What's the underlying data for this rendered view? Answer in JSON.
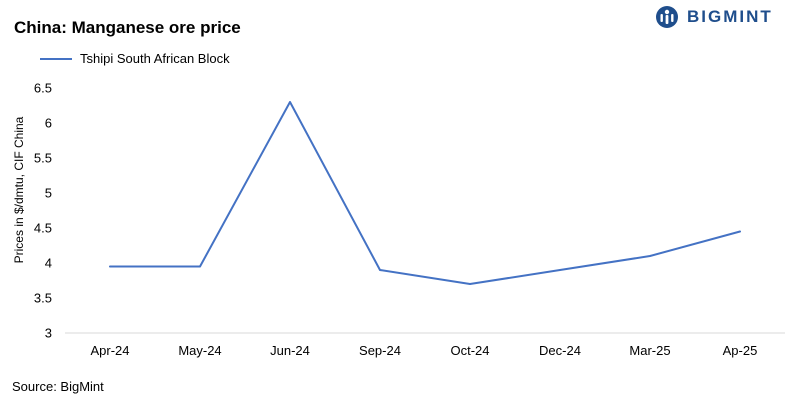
{
  "header": {
    "title": "China: Manganese ore price",
    "brand": "BIGMINT"
  },
  "source": "Source:  BigMint",
  "colors": {
    "series_line": "#4472C4",
    "brand": "#1f4e8c",
    "axis": "#d9d9d9"
  },
  "chart_data": {
    "type": "line",
    "title": "China: Manganese ore price",
    "xlabel": "",
    "ylabel": "Prices in $/dmtu, CIF China",
    "categories": [
      "Apr-24",
      "May-24",
      "Jun-24",
      "Sep-24",
      "Oct-24",
      "Dec-24",
      "Mar-25",
      "Ap-25"
    ],
    "series": [
      {
        "name": "Tshipi South African Block",
        "values": [
          3.95,
          3.95,
          6.3,
          3.9,
          3.7,
          3.9,
          4.1,
          4.45
        ]
      }
    ],
    "ylim": [
      3,
      6.5
    ],
    "yticks": [
      "3",
      "3.5",
      "4",
      "4.5",
      "5",
      "5.5",
      "6",
      "6.5"
    ],
    "grid": false,
    "legend": "top-left"
  }
}
